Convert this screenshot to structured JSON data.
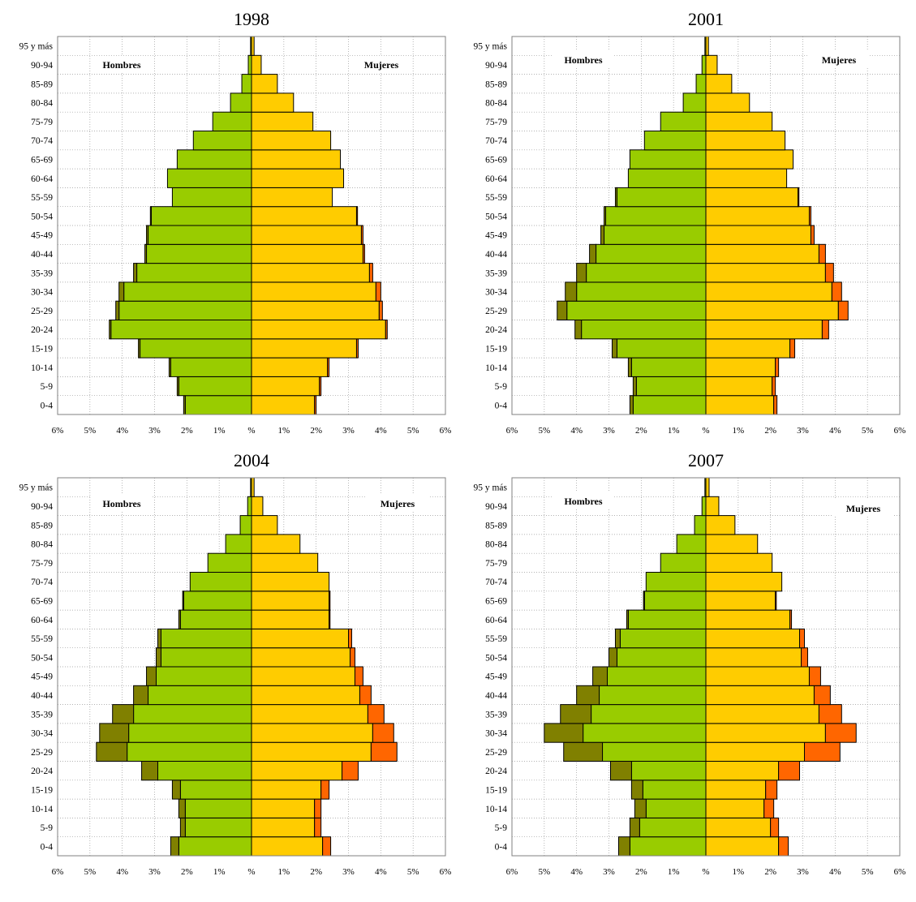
{
  "colors": {
    "male_base": "#99cc00",
    "male_extra": "#808000",
    "female_base": "#ffcc00",
    "female_extra": "#ff6600",
    "grid": "#c0c0c0",
    "plot_border": "#808080",
    "bar_border": "#000000"
  },
  "chart_data": [
    {
      "type": "bar",
      "title": "1998",
      "xlabel": "",
      "ylabel": "",
      "male_label": "Hombres",
      "female_label": "Mujeres",
      "legend_position": "top",
      "grid": true,
      "xlim": [
        -6,
        6
      ],
      "x_ticks": [
        -6,
        -5,
        -4,
        -3,
        -2,
        -1,
        0,
        1,
        2,
        3,
        4,
        5,
        6
      ],
      "x_tick_labels": [
        "6%",
        "5%",
        "4%",
        "3%",
        "2%",
        "1%",
        "%",
        "1%",
        "2%",
        "3%",
        "4%",
        "5%",
        "6%"
      ],
      "categories": [
        "0-4",
        "5-9",
        "10-14",
        "15-19",
        "20-24",
        "25-29",
        "30-34",
        "35-39",
        "40-44",
        "45-49",
        "50-54",
        "55-59",
        "60-64",
        "65-69",
        "70-74",
        "75-79",
        "80-84",
        "85-89",
        "90-94",
        "95 y más"
      ],
      "series": [
        {
          "name": "",
          "values": [
            2.05,
            2.25,
            2.5,
            3.45,
            4.35,
            4.1,
            3.95,
            3.55,
            3.25,
            3.2,
            3.1,
            2.45,
            2.6,
            2.3,
            1.8,
            1.2,
            0.65,
            0.3,
            0.1,
            0.03
          ]
        },
        {
          "name": "",
          "values": [
            0.05,
            0.05,
            0.05,
            0.05,
            0.05,
            0.1,
            0.15,
            0.1,
            0.05,
            0.05,
            0.03,
            0,
            0,
            0,
            0,
            0,
            0,
            0,
            0,
            0
          ]
        },
        {
          "name": "",
          "values": [
            1.95,
            2.1,
            2.35,
            3.25,
            4.15,
            3.95,
            3.85,
            3.65,
            3.45,
            3.4,
            3.25,
            2.5,
            2.85,
            2.75,
            2.45,
            1.9,
            1.3,
            0.8,
            0.3,
            0.08
          ]
        },
        {
          "name": "",
          "values": [
            0.05,
            0.05,
            0.05,
            0.05,
            0.05,
            0.1,
            0.15,
            0.1,
            0.05,
            0.05,
            0.03,
            0,
            0,
            0,
            0,
            0,
            0,
            0,
            0,
            0
          ]
        }
      ]
    },
    {
      "type": "bar",
      "title": "2001",
      "xlabel": "",
      "ylabel": "",
      "male_label": "Hombres",
      "female_label": "Mujeres",
      "legend_position": "top",
      "grid": true,
      "xlim": [
        -6,
        6
      ],
      "x_ticks": [
        -6,
        -5,
        -4,
        -3,
        -2,
        -1,
        0,
        1,
        2,
        3,
        4,
        5,
        6
      ],
      "x_tick_labels": [
        "6%",
        "5%",
        "4%",
        "3%",
        "2%",
        "1%",
        "%",
        "1%",
        "2%",
        "3%",
        "4%",
        "5%",
        "6%"
      ],
      "categories": [
        "0-4",
        "5-9",
        "10-14",
        "15-19",
        "20-24",
        "25-29",
        "30-34",
        "35-39",
        "40-44",
        "45-49",
        "50-54",
        "55-59",
        "60-64",
        "65-69",
        "70-74",
        "75-79",
        "80-84",
        "85-89",
        "90-94",
        "95 y más"
      ],
      "series": [
        {
          "name": "",
          "values": [
            2.25,
            2.15,
            2.3,
            2.75,
            3.85,
            4.3,
            4.0,
            3.7,
            3.4,
            3.15,
            3.1,
            2.75,
            2.4,
            2.35,
            1.9,
            1.4,
            0.7,
            0.3,
            0.12,
            0.03
          ]
        },
        {
          "name": "",
          "values": [
            0.1,
            0.1,
            0.1,
            0.15,
            0.2,
            0.3,
            0.35,
            0.3,
            0.2,
            0.1,
            0.05,
            0.05,
            0,
            0,
            0,
            0,
            0,
            0,
            0,
            0
          ]
        },
        {
          "name": "",
          "values": [
            2.1,
            2.05,
            2.15,
            2.6,
            3.6,
            4.1,
            3.9,
            3.7,
            3.5,
            3.25,
            3.2,
            2.85,
            2.5,
            2.7,
            2.45,
            2.05,
            1.35,
            0.8,
            0.35,
            0.08
          ]
        },
        {
          "name": "",
          "values": [
            0.1,
            0.1,
            0.1,
            0.15,
            0.2,
            0.3,
            0.3,
            0.25,
            0.2,
            0.1,
            0.05,
            0.03,
            0,
            0,
            0,
            0,
            0,
            0,
            0,
            0
          ]
        }
      ]
    },
    {
      "type": "bar",
      "title": "2004",
      "xlabel": "",
      "ylabel": "",
      "male_label": "Hombres",
      "female_label": "Mujeres",
      "legend_position": "top",
      "grid": true,
      "xlim": [
        -6,
        6
      ],
      "x_ticks": [
        -6,
        -5,
        -4,
        -3,
        -2,
        -1,
        0,
        1,
        2,
        3,
        4,
        5,
        6
      ],
      "x_tick_labels": [
        "6%",
        "5%",
        "4%",
        "3%",
        "2%",
        "1%",
        "%",
        "1%",
        "2%",
        "3%",
        "4%",
        "5%",
        "6%"
      ],
      "categories": [
        "0-4",
        "5-9",
        "10-14",
        "15-19",
        "20-24",
        "25-29",
        "30-34",
        "35-39",
        "40-44",
        "45-49",
        "50-54",
        "55-59",
        "60-64",
        "65-69",
        "70-74",
        "75-79",
        "80-84",
        "85-89",
        "90-94",
        "95 y más"
      ],
      "series": [
        {
          "name": "",
          "values": [
            2.25,
            2.05,
            2.05,
            2.2,
            2.9,
            3.85,
            3.8,
            3.65,
            3.2,
            2.95,
            2.8,
            2.8,
            2.2,
            2.1,
            1.9,
            1.35,
            0.8,
            0.35,
            0.12,
            0.03
          ]
        },
        {
          "name": "",
          "values": [
            0.25,
            0.15,
            0.2,
            0.25,
            0.5,
            0.95,
            0.9,
            0.65,
            0.45,
            0.3,
            0.15,
            0.1,
            0.05,
            0.03,
            0,
            0,
            0,
            0,
            0,
            0
          ]
        },
        {
          "name": "",
          "values": [
            2.2,
            1.95,
            1.95,
            2.15,
            2.8,
            3.7,
            3.75,
            3.6,
            3.35,
            3.2,
            3.05,
            3.0,
            2.4,
            2.4,
            2.4,
            2.05,
            1.5,
            0.8,
            0.35,
            0.08
          ]
        },
        {
          "name": "",
          "values": [
            0.25,
            0.2,
            0.2,
            0.25,
            0.5,
            0.8,
            0.65,
            0.5,
            0.35,
            0.25,
            0.15,
            0.1,
            0.03,
            0.03,
            0,
            0,
            0,
            0,
            0,
            0
          ]
        }
      ]
    },
    {
      "type": "bar",
      "title": "2007",
      "xlabel": "",
      "ylabel": "",
      "male_label": "Hombres",
      "female_label": "Mujeres",
      "legend_position": "top",
      "grid": true,
      "xlim": [
        -6,
        6
      ],
      "x_ticks": [
        -6,
        -5,
        -4,
        -3,
        -2,
        -1,
        0,
        1,
        2,
        3,
        4,
        5,
        6
      ],
      "x_tick_labels": [
        "6%",
        "5%",
        "4%",
        "3%",
        "2%",
        "1%",
        "%",
        "1%",
        "2%",
        "3%",
        "4%",
        "5%",
        "6%"
      ],
      "categories": [
        "0-4",
        "5-9",
        "10-14",
        "15-19",
        "20-24",
        "25-29",
        "30-34",
        "35-39",
        "40-44",
        "45-49",
        "50-54",
        "55-59",
        "60-64",
        "65-69",
        "70-74",
        "75-79",
        "80-84",
        "85-89",
        "90-94",
        "95 y más"
      ],
      "series": [
        {
          "name": "",
          "values": [
            2.35,
            2.05,
            1.85,
            1.95,
            2.3,
            3.2,
            3.8,
            3.55,
            3.3,
            3.05,
            2.75,
            2.65,
            2.4,
            1.9,
            1.85,
            1.4,
            0.9,
            0.35,
            0.12,
            0.03
          ]
        },
        {
          "name": "",
          "values": [
            0.35,
            0.3,
            0.35,
            0.35,
            0.65,
            1.2,
            1.2,
            0.95,
            0.7,
            0.45,
            0.25,
            0.15,
            0.05,
            0.03,
            0,
            0,
            0,
            0,
            0,
            0
          ]
        },
        {
          "name": "",
          "values": [
            2.25,
            2.0,
            1.8,
            1.85,
            2.25,
            3.05,
            3.7,
            3.5,
            3.35,
            3.2,
            2.95,
            2.9,
            2.6,
            2.15,
            2.35,
            2.05,
            1.6,
            0.9,
            0.4,
            0.1
          ]
        },
        {
          "name": "",
          "values": [
            0.3,
            0.25,
            0.3,
            0.35,
            0.65,
            1.1,
            0.95,
            0.7,
            0.5,
            0.35,
            0.2,
            0.15,
            0.05,
            0.03,
            0,
            0,
            0,
            0,
            0,
            0
          ]
        }
      ]
    }
  ]
}
